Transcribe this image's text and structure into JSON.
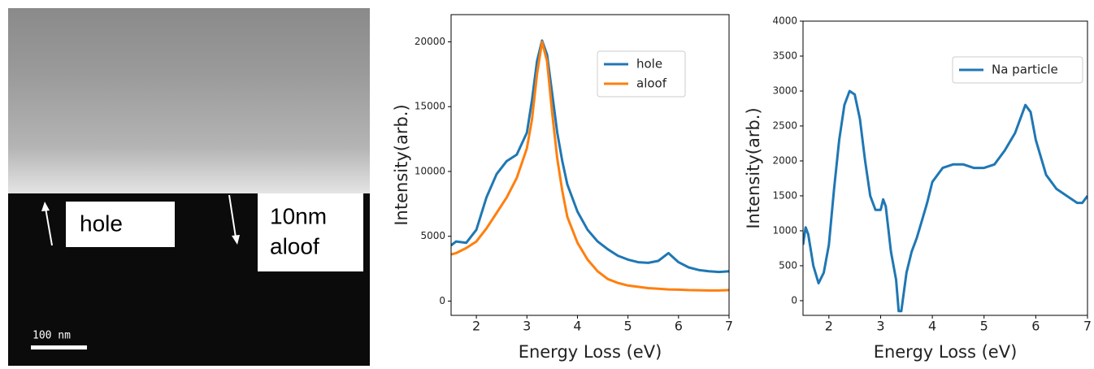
{
  "image": {
    "hole_label": "hole",
    "aloof_label": [
      "10nm",
      "aloof"
    ],
    "scale_bar": "100 nm"
  },
  "chart_data": [
    {
      "type": "line",
      "xlabel": "Energy Loss (eV)",
      "ylabel": "Intensity(arb.)",
      "xlim": [
        1.5,
        7
      ],
      "ylim": [
        -1100,
        22100
      ],
      "xticks": [
        2,
        3,
        4,
        5,
        6,
        7
      ],
      "yticks": [
        0,
        5000,
        10000,
        15000,
        20000
      ],
      "legend": "upper right",
      "x": [
        1.5,
        1.6,
        1.8,
        2.0,
        2.2,
        2.4,
        2.6,
        2.8,
        3.0,
        3.1,
        3.2,
        3.3,
        3.4,
        3.5,
        3.6,
        3.7,
        3.8,
        4.0,
        4.2,
        4.4,
        4.6,
        4.8,
        5.0,
        5.2,
        5.4,
        5.6,
        5.8,
        6.0,
        6.2,
        6.4,
        6.6,
        6.8,
        7.0
      ],
      "series": [
        {
          "name": "hole",
          "color": "#1f77b4",
          "values": [
            4300,
            4600,
            4500,
            5500,
            8000,
            9800,
            10800,
            11300,
            13000,
            15500,
            18500,
            20100,
            19000,
            16000,
            13000,
            10800,
            9000,
            6900,
            5500,
            4600,
            4000,
            3500,
            3200,
            3000,
            2950,
            3100,
            3700,
            3000,
            2600,
            2400,
            2300,
            2250,
            2300
          ]
        },
        {
          "name": "aloof",
          "color": "#ff7f0e",
          "values": [
            3600,
            3700,
            4100,
            4600,
            5600,
            6800,
            8000,
            9500,
            11800,
            14000,
            17500,
            20000,
            18500,
            14500,
            11000,
            8500,
            6500,
            4500,
            3200,
            2300,
            1700,
            1400,
            1200,
            1100,
            1000,
            950,
            900,
            880,
            850,
            840,
            820,
            820,
            850
          ]
        }
      ]
    },
    {
      "type": "line",
      "xlabel": "Energy Loss (eV)",
      "ylabel": "Intensity(arb.)",
      "xlim": [
        1.5,
        7
      ],
      "ylim": [
        -210,
        4000
      ],
      "xticks": [
        2,
        3,
        4,
        5,
        6,
        7
      ],
      "yticks": [
        0,
        500,
        1000,
        1500,
        2000,
        2500,
        3000,
        3500,
        4000
      ],
      "legend": "upper right",
      "x": [
        1.5,
        1.55,
        1.6,
        1.7,
        1.8,
        1.9,
        2.0,
        2.1,
        2.2,
        2.3,
        2.4,
        2.5,
        2.6,
        2.7,
        2.8,
        2.9,
        3.0,
        3.05,
        3.1,
        3.2,
        3.3,
        3.35,
        3.4,
        3.5,
        3.6,
        3.7,
        3.8,
        3.9,
        4.0,
        4.2,
        4.4,
        4.6,
        4.8,
        5.0,
        5.2,
        5.4,
        5.6,
        5.8,
        5.9,
        6.0,
        6.2,
        6.4,
        6.6,
        6.8,
        6.9,
        7.0
      ],
      "series": [
        {
          "name": "Na particle",
          "color": "#1f77b4",
          "values": [
            800,
            1050,
            950,
            500,
            250,
            400,
            800,
            1600,
            2300,
            2800,
            3000,
            2950,
            2600,
            2000,
            1500,
            1300,
            1300,
            1450,
            1350,
            700,
            300,
            -150,
            -150,
            400,
            700,
            900,
            1150,
            1400,
            1700,
            1900,
            1950,
            1950,
            1900,
            1900,
            1950,
            2150,
            2400,
            2800,
            2700,
            2300,
            1800,
            1600,
            1500,
            1400,
            1400,
            1500
          ]
        }
      ]
    }
  ]
}
